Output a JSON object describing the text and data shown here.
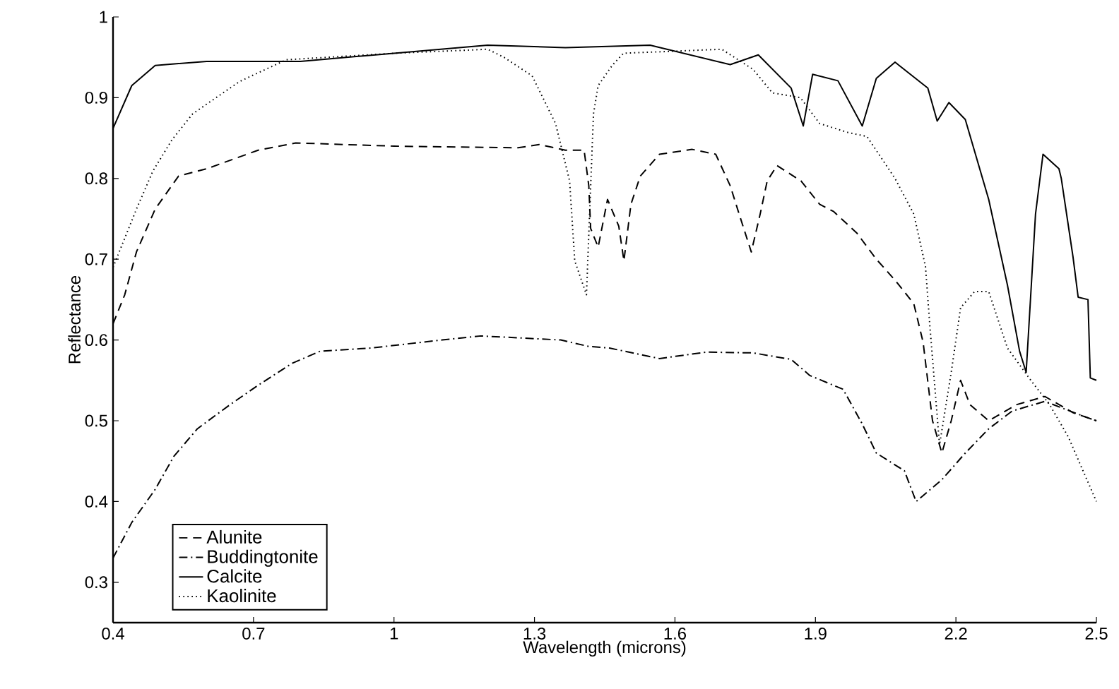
{
  "chart_data": {
    "type": "line",
    "xlabel": "Wavelength (microns)",
    "ylabel": "Reflectance",
    "xlim": [
      0.4,
      2.5
    ],
    "ylim": [
      0.25,
      1
    ],
    "xticks": [
      0.4,
      0.7,
      1,
      1.3,
      1.6,
      1.9,
      2.2,
      2.5
    ],
    "yticks": [
      0.3,
      0.4,
      0.5,
      0.6,
      0.7,
      0.8,
      0.9,
      1
    ],
    "legend": "bottom left",
    "grid": false,
    "marker": "none",
    "series": [
      {
        "name": "Alunite",
        "color": "#000000",
        "line_style": "dashed",
        "x": [
          0.4,
          0.425,
          0.45,
          0.49,
          0.54,
          0.6,
          0.71,
          0.79,
          1.0,
          1.265,
          1.31,
          1.366,
          1.406,
          1.416,
          1.42,
          1.436,
          1.456,
          1.48,
          1.491,
          1.506,
          1.526,
          1.567,
          1.637,
          1.687,
          1.718,
          1.737,
          1.763,
          1.782,
          1.797,
          1.818,
          1.869,
          1.909,
          1.939,
          1.989,
          2.03,
          2.07,
          2.11,
          2.13,
          2.15,
          2.17,
          2.19,
          2.21,
          2.23,
          2.27,
          2.33,
          2.39,
          2.45,
          2.5
        ],
        "values": [
          0.62,
          0.656,
          0.709,
          0.762,
          0.803,
          0.812,
          0.835,
          0.844,
          0.84,
          0.838,
          0.842,
          0.835,
          0.835,
          0.791,
          0.738,
          0.715,
          0.774,
          0.741,
          0.698,
          0.768,
          0.803,
          0.83,
          0.836,
          0.83,
          0.791,
          0.756,
          0.709,
          0.756,
          0.797,
          0.816,
          0.797,
          0.768,
          0.759,
          0.732,
          0.7,
          0.674,
          0.645,
          0.597,
          0.5,
          0.46,
          0.5,
          0.55,
          0.52,
          0.5,
          0.52,
          0.53,
          0.51,
          0.5
        ]
      },
      {
        "name": "Buddingtonite",
        "color": "#000000",
        "line_style": "dashdot",
        "x": [
          0.4,
          0.44,
          0.49,
          0.53,
          0.58,
          0.65,
          0.71,
          0.782,
          0.842,
          0.95,
          1.103,
          1.185,
          1.356,
          1.416,
          1.46,
          1.567,
          1.667,
          1.767,
          1.848,
          1.888,
          1.959,
          1.999,
          2.03,
          2.09,
          2.115,
          2.17,
          2.22,
          2.27,
          2.32,
          2.39,
          2.43,
          2.48,
          2.5
        ],
        "values": [
          0.33,
          0.374,
          0.415,
          0.456,
          0.49,
          0.52,
          0.544,
          0.571,
          0.586,
          0.59,
          0.6,
          0.605,
          0.6,
          0.592,
          0.59,
          0.577,
          0.585,
          0.584,
          0.576,
          0.556,
          0.539,
          0.497,
          0.46,
          0.438,
          0.4,
          0.427,
          0.46,
          0.49,
          0.512,
          0.524,
          0.515,
          0.504,
          0.5
        ]
      },
      {
        "name": "Calcite",
        "color": "#000000",
        "line_style": "solid",
        "x": [
          0.4,
          0.44,
          0.49,
          0.6,
          0.8,
          1.0,
          1.2,
          1.366,
          1.547,
          1.718,
          1.778,
          1.848,
          1.874,
          1.894,
          1.948,
          2.0,
          2.03,
          2.07,
          2.14,
          2.16,
          2.185,
          2.22,
          2.27,
          2.31,
          2.336,
          2.35,
          2.37,
          2.386,
          2.42,
          2.425,
          2.45,
          2.461,
          2.482,
          2.487,
          2.5
        ],
        "values": [
          0.862,
          0.915,
          0.94,
          0.945,
          0.945,
          0.955,
          0.965,
          0.962,
          0.965,
          0.941,
          0.953,
          0.912,
          0.865,
          0.929,
          0.921,
          0.865,
          0.924,
          0.944,
          0.912,
          0.871,
          0.894,
          0.873,
          0.774,
          0.668,
          0.586,
          0.56,
          0.756,
          0.83,
          0.812,
          0.8,
          0.703,
          0.653,
          0.65,
          0.553,
          0.55
        ]
      },
      {
        "name": "Kaolinite",
        "color": "#000000",
        "line_style": "dotted",
        "x": [
          0.4,
          0.45,
          0.485,
          0.526,
          0.57,
          0.67,
          0.77,
          1.0,
          1.2,
          1.235,
          1.295,
          1.345,
          1.375,
          1.386,
          1.411,
          1.426,
          1.436,
          1.466,
          1.49,
          1.7,
          1.767,
          1.808,
          1.868,
          1.909,
          1.969,
          2.01,
          2.07,
          2.11,
          2.135,
          2.144,
          2.165,
          2.19,
          2.21,
          2.24,
          2.27,
          2.31,
          2.36,
          2.4,
          2.44,
          2.47,
          2.5
        ],
        "values": [
          0.69,
          0.762,
          0.809,
          0.848,
          0.88,
          0.92,
          0.947,
          0.955,
          0.96,
          0.95,
          0.927,
          0.868,
          0.797,
          0.698,
          0.656,
          0.88,
          0.915,
          0.94,
          0.955,
          0.96,
          0.935,
          0.906,
          0.9,
          0.868,
          0.857,
          0.852,
          0.8,
          0.756,
          0.691,
          0.62,
          0.47,
          0.56,
          0.64,
          0.66,
          0.66,
          0.59,
          0.55,
          0.52,
          0.48,
          0.44,
          0.4
        ]
      }
    ]
  }
}
